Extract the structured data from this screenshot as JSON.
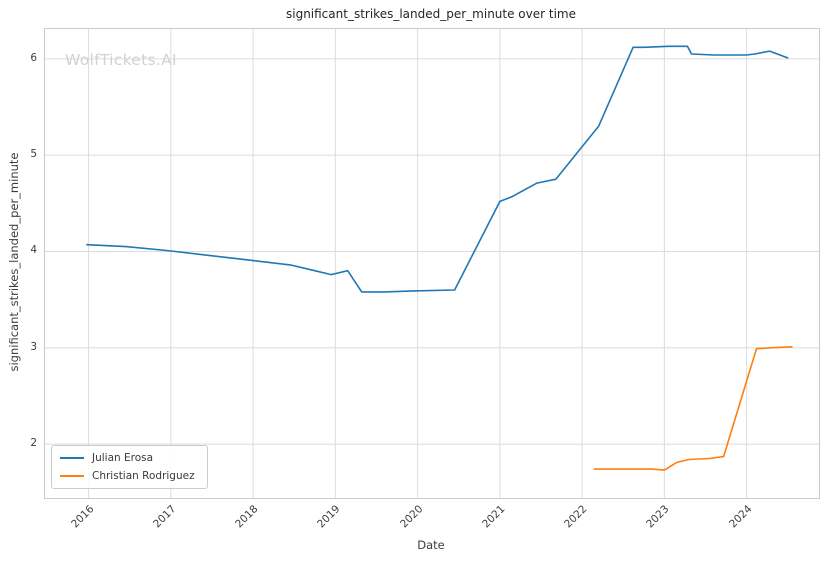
{
  "watermark": "WolfTickets.AI",
  "chart_data": {
    "type": "line",
    "title": "significant_strikes_landed_per_minute over time",
    "xlabel": "Date",
    "ylabel": "significant_strikes_landed_per_minute",
    "xlim": [
      2015.47,
      2024.88
    ],
    "ylim": [
      1.44,
      6.31
    ],
    "xticks": [
      2016,
      2017,
      2018,
      2019,
      2020,
      2021,
      2022,
      2023,
      2024
    ],
    "yticks": [
      2,
      3,
      4,
      5,
      6
    ],
    "grid": true,
    "legend_position": "lower left",
    "colors": {
      "grid": "#dcdcdc",
      "border": "#cccccc",
      "text": "#3d3d3d",
      "watermark": "#d2d2d2"
    },
    "series": [
      {
        "name": "Julian Erosa",
        "color": "#1f77b4",
        "points": [
          [
            2015.98,
            4.07
          ],
          [
            2016.45,
            4.05
          ],
          [
            2016.95,
            4.01
          ],
          [
            2017.45,
            3.96
          ],
          [
            2017.95,
            3.91
          ],
          [
            2018.45,
            3.86
          ],
          [
            2018.75,
            3.8
          ],
          [
            2018.95,
            3.76
          ],
          [
            2019.15,
            3.8
          ],
          [
            2019.32,
            3.58
          ],
          [
            2019.6,
            3.58
          ],
          [
            2019.95,
            3.59
          ],
          [
            2020.45,
            3.6
          ],
          [
            2021.0,
            4.52
          ],
          [
            2021.15,
            4.57
          ],
          [
            2021.45,
            4.71
          ],
          [
            2021.68,
            4.75
          ],
          [
            2022.2,
            5.3
          ],
          [
            2022.62,
            6.12
          ],
          [
            2022.75,
            6.12
          ],
          [
            2023.05,
            6.13
          ],
          [
            2023.28,
            6.13
          ],
          [
            2023.33,
            6.05
          ],
          [
            2023.6,
            6.04
          ],
          [
            2024.0,
            6.04
          ],
          [
            2024.1,
            6.05
          ],
          [
            2024.28,
            6.08
          ],
          [
            2024.5,
            6.01
          ]
        ]
      },
      {
        "name": "Christian Rodriguez",
        "color": "#ff7f0e",
        "points": [
          [
            2022.15,
            1.74
          ],
          [
            2022.5,
            1.74
          ],
          [
            2022.85,
            1.74
          ],
          [
            2023.0,
            1.73
          ],
          [
            2023.15,
            1.81
          ],
          [
            2023.3,
            1.84
          ],
          [
            2023.55,
            1.85
          ],
          [
            2023.72,
            1.87
          ],
          [
            2024.12,
            2.99
          ],
          [
            2024.3,
            3.0
          ],
          [
            2024.55,
            3.01
          ]
        ]
      }
    ]
  }
}
